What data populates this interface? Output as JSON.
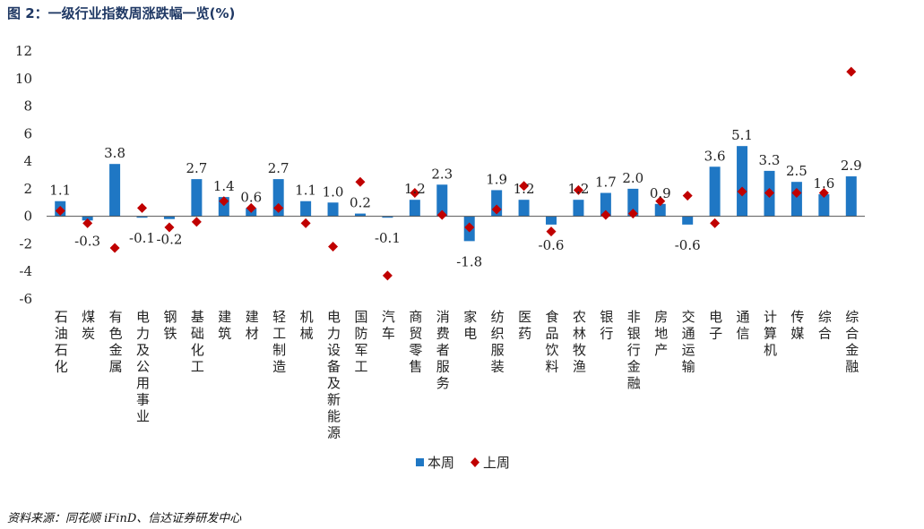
{
  "figure": {
    "title": "图 2：一级行业指数周涨跌幅一览(%)",
    "source": "资料来源：同花顺 iFinD、信达证券研发中心"
  },
  "colors": {
    "bar": "#1f77c4",
    "marker": "#c00000",
    "axis": "#555555"
  },
  "chart_data": {
    "type": "bar",
    "title": "一级行业指数周涨跌幅一览(%)",
    "xlabel": "",
    "ylabel": "",
    "ylim": [
      -6,
      12
    ],
    "yticks": [
      12,
      10,
      8,
      6,
      4,
      2,
      0,
      -2,
      -4,
      -6
    ],
    "categories": [
      "石油石化",
      "煤炭",
      "有色金属",
      "电力及公用事业",
      "钢铁",
      "基础化工",
      "建筑",
      "建材",
      "轻工制造",
      "机械",
      "电力设备及新能源",
      "国防军工",
      "汽车",
      "商贸零售",
      "消费者服务",
      "家电",
      "纺织服装",
      "医药",
      "食品饮料",
      "农林牧渔",
      "银行",
      "非银行金融",
      "房地产",
      "交通运输",
      "电子",
      "通信",
      "计算机",
      "传媒",
      "综合",
      "综合金融"
    ],
    "series": [
      {
        "name": "本周",
        "kind": "bar",
        "values": [
          1.1,
          -0.3,
          3.8,
          -0.1,
          -0.2,
          2.7,
          1.4,
          0.6,
          2.7,
          1.1,
          1.0,
          0.2,
          -0.1,
          1.2,
          2.3,
          -1.8,
          1.9,
          1.2,
          -0.6,
          1.2,
          1.7,
          2.0,
          0.9,
          -0.6,
          3.6,
          5.1,
          3.3,
          2.5,
          1.6,
          2.9
        ],
        "labels": [
          "1.1",
          "-0.3",
          "3.8",
          "-0.1",
          "-0.2",
          "2.7",
          "1.4",
          "0.6",
          "2.7",
          "1.1",
          "1.0",
          "0.2",
          "-0.1",
          "1.2",
          "2.3",
          "-1.8",
          "1.9",
          "1.2",
          "-0.6",
          "1.2",
          "1.7",
          "2.0",
          "0.9",
          "-0.6",
          "3.6",
          "5.1",
          "3.3",
          "2.5",
          "1.6",
          "2.9"
        ]
      },
      {
        "name": "上周",
        "kind": "marker",
        "values": [
          0.4,
          -0.5,
          -2.3,
          0.6,
          -0.8,
          -0.4,
          1.1,
          0.6,
          0.6,
          -0.5,
          -2.2,
          2.5,
          -4.3,
          1.7,
          0.1,
          -0.8,
          0.5,
          2.2,
          -1.1,
          1.9,
          0.1,
          0.2,
          1.1,
          1.5,
          -0.5,
          1.8,
          1.7,
          1.7,
          1.7,
          10.5
        ]
      }
    ],
    "legend": {
      "position": "bottom-center",
      "entries": [
        "本周",
        "上周"
      ]
    }
  }
}
